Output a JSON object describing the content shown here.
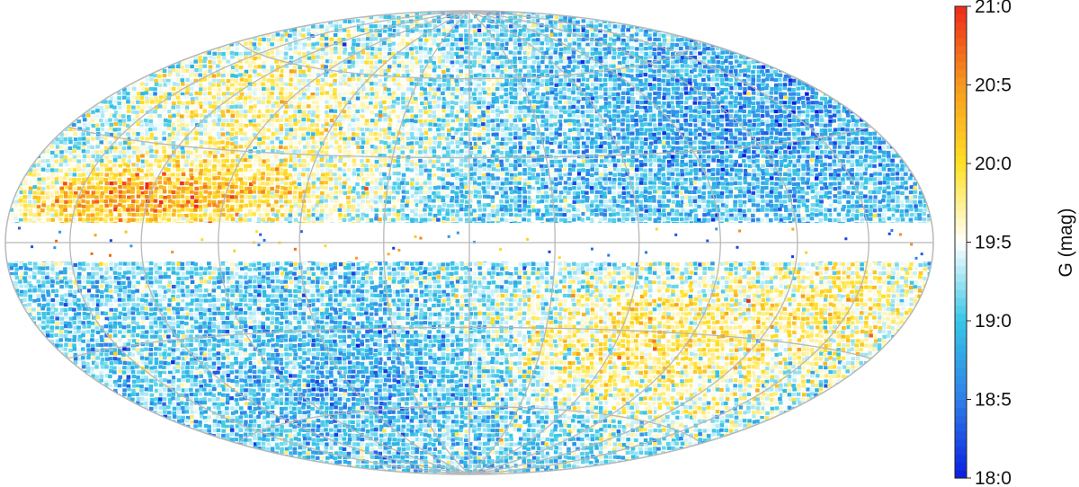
{
  "chart_data": {
    "type": "heatmap",
    "projection": "hammer-aitoff (all-sky)",
    "graticule": true,
    "masked_band": "galactic plane (|b| small) left blank",
    "colorbar": {
      "label": "G  (mag)",
      "range": [
        18.0,
        21.0
      ],
      "ticks": [
        {
          "value": 18.0,
          "label": "18:0"
        },
        {
          "value": 18.5,
          "label": "18:5"
        },
        {
          "value": 19.0,
          "label": "19:0"
        },
        {
          "value": 19.5,
          "label": "19:5"
        },
        {
          "value": 20.0,
          "label": "20:0"
        },
        {
          "value": 20.5,
          "label": "20:5"
        },
        {
          "value": 21.0,
          "label": "21:0"
        }
      ],
      "colors": [
        "#0a1ee0",
        "#2f7fe8",
        "#35c6e6",
        "#ffffff",
        "#ffe024",
        "#f59a1e",
        "#ee2a1a"
      ],
      "placement": "right"
    },
    "structure_note": "fainter (orange/red, ~20-20.5 mag) concentrations near the plane on left-north and right-south; brighter (blue, ~18.5-19 mag) regions elsewhere"
  }
}
